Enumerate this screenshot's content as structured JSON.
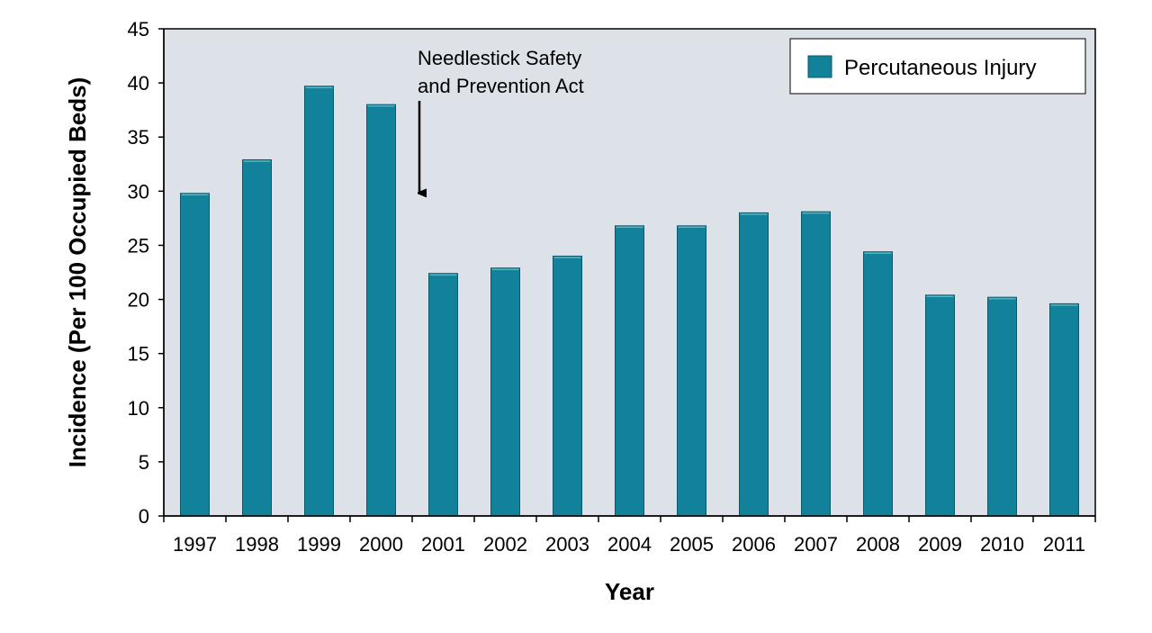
{
  "chart_data": {
    "type": "bar",
    "categories": [
      "1997",
      "1998",
      "1999",
      "2000",
      "2001",
      "2002",
      "2003",
      "2004",
      "2005",
      "2006",
      "2007",
      "2008",
      "2009",
      "2010",
      "2011"
    ],
    "series": [
      {
        "name": "Percutaneous Injury",
        "values": [
          29.8,
          32.9,
          39.7,
          38.0,
          22.4,
          22.9,
          24.0,
          26.8,
          26.8,
          28.0,
          28.1,
          24.4,
          20.4,
          20.2,
          19.6
        ],
        "color": "#11829a"
      }
    ],
    "title": "",
    "xlabel": "Year",
    "ylabel": "Incidence (Per 100 Occupied Beds)",
    "ylim": [
      0,
      45
    ],
    "yticks": [
      0,
      5,
      10,
      15,
      20,
      25,
      30,
      35,
      40,
      45
    ],
    "grid": false,
    "plot_background": "#dde2e9",
    "legend": {
      "position": "top-right"
    },
    "annotation": {
      "text_lines": [
        "Needlestick Safety",
        "and Prevention Act"
      ],
      "arrow_target": {
        "category_between": [
          "2000",
          "2001"
        ],
        "y": 29
      }
    }
  }
}
